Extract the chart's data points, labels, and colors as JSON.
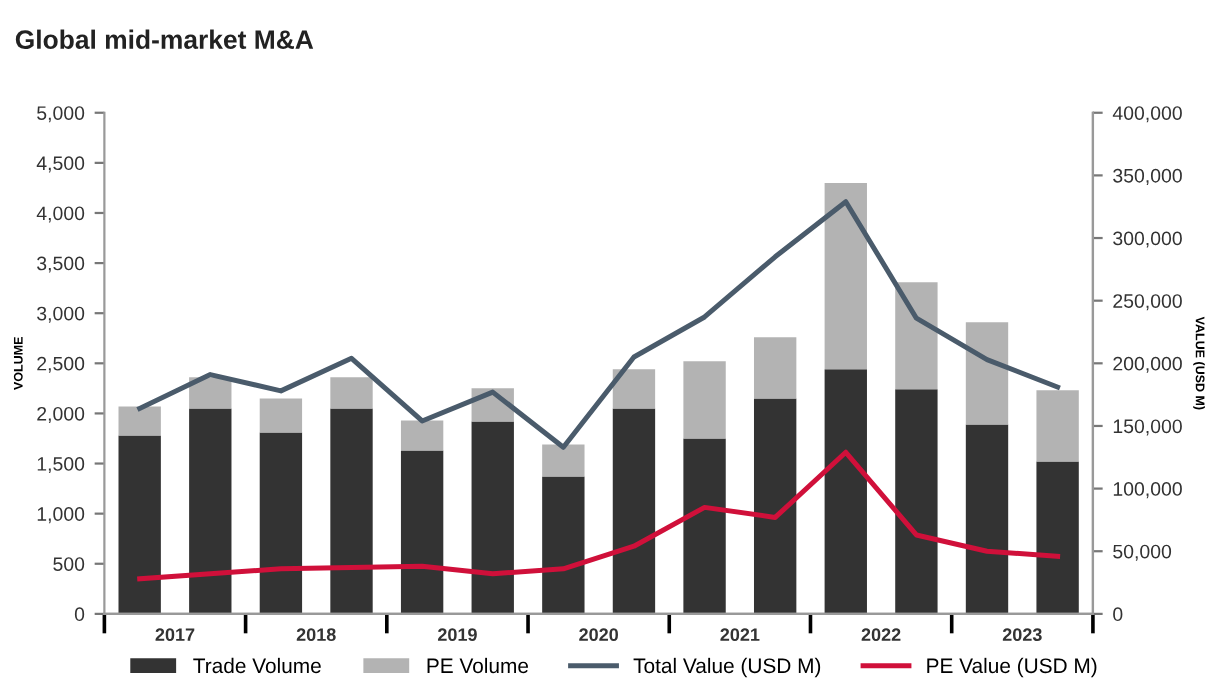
{
  "chart_data": {
    "type": "bar",
    "title": "Global mid-market M&A",
    "ylabel": "VOLUME",
    "y2label": "VALUE (USD M)",
    "stacked": true,
    "legend": "bottom",
    "grid": false,
    "x": [
      2017.25,
      2017.75,
      2018.25,
      2018.75,
      2019.25,
      2019.75,
      2020.25,
      2020.75,
      2021.25,
      2021.75,
      2022.25,
      2022.75,
      2023.25,
      2023.75
    ],
    "xlim": [
      2017,
      2024
    ],
    "xticks": [
      {
        "value": 2017,
        "label": null
      },
      {
        "value": 2017.5,
        "label": "2017"
      },
      {
        "value": 2018,
        "label": null
      },
      {
        "value": 2018.5,
        "label": "2018"
      },
      {
        "value": 2019,
        "label": null
      },
      {
        "value": 2019.5,
        "label": "2019"
      },
      {
        "value": 2020,
        "label": null
      },
      {
        "value": 2020.5,
        "label": "2020"
      },
      {
        "value": 2021,
        "label": null
      },
      {
        "value": 2021.5,
        "label": "2021"
      },
      {
        "value": 2022,
        "label": null
      },
      {
        "value": 2022.5,
        "label": "2022"
      },
      {
        "value": 2023,
        "label": null
      },
      {
        "value": 2023.5,
        "label": "2023"
      },
      {
        "value": 2024,
        "label": null
      }
    ],
    "ylim": [
      0,
      5000
    ],
    "yticks": [
      {
        "value": 0,
        "label": "0"
      },
      {
        "value": 500,
        "label": "500"
      },
      {
        "value": 1000,
        "label": "1,000"
      },
      {
        "value": 1500,
        "label": "1,500"
      },
      {
        "value": 2000,
        "label": "2,000"
      },
      {
        "value": 2500,
        "label": "2,500"
      },
      {
        "value": 3000,
        "label": "3,000"
      },
      {
        "value": 3500,
        "label": "3,500"
      },
      {
        "value": 4000,
        "label": "4,000"
      },
      {
        "value": 4500,
        "label": "4,500"
      },
      {
        "value": 5000,
        "label": "5,000"
      }
    ],
    "y2lim": [
      0,
      400000
    ],
    "y2ticks": [
      {
        "value": 0,
        "label": "0"
      },
      {
        "value": 50000,
        "label": "50,000"
      },
      {
        "value": 100000,
        "label": "100,000"
      },
      {
        "value": 150000,
        "label": "150,000"
      },
      {
        "value": 200000,
        "label": "200,000"
      },
      {
        "value": 250000,
        "label": "250,000"
      },
      {
        "value": 300000,
        "label": "300,000"
      },
      {
        "value": 350000,
        "label": "350,000"
      },
      {
        "value": 400000,
        "label": "400,000"
      }
    ],
    "series": [
      {
        "name": "Trade Volume",
        "color": "#333333",
        "values": [
          1780,
          2050,
          1810,
          2050,
          1630,
          1920,
          1370,
          2050,
          1750,
          2150,
          2440,
          2240,
          1890,
          1520
        ]
      },
      {
        "name": "PE Volume",
        "color": "#b3b3b3",
        "values": [
          290,
          310,
          340,
          310,
          300,
          330,
          320,
          390,
          770,
          610,
          1860,
          1070,
          1020,
          710
        ]
      },
      {
        "name": "Total Value (USD M)",
        "type": "line",
        "axis": "y2",
        "color": "#4a5b6b",
        "values": [
          164000,
          191000,
          178000,
          204000,
          154000,
          177000,
          133000,
          205000,
          237000,
          285000,
          329000,
          236000,
          203000,
          181000
        ]
      },
      {
        "name": "PE Value (USD M)",
        "type": "line",
        "axis": "y2",
        "color": "#d0103a",
        "values": [
          28000,
          32000,
          36000,
          37000,
          38000,
          32000,
          36000,
          54000,
          85000,
          77000,
          129000,
          63000,
          50000,
          46000
        ]
      }
    ]
  }
}
